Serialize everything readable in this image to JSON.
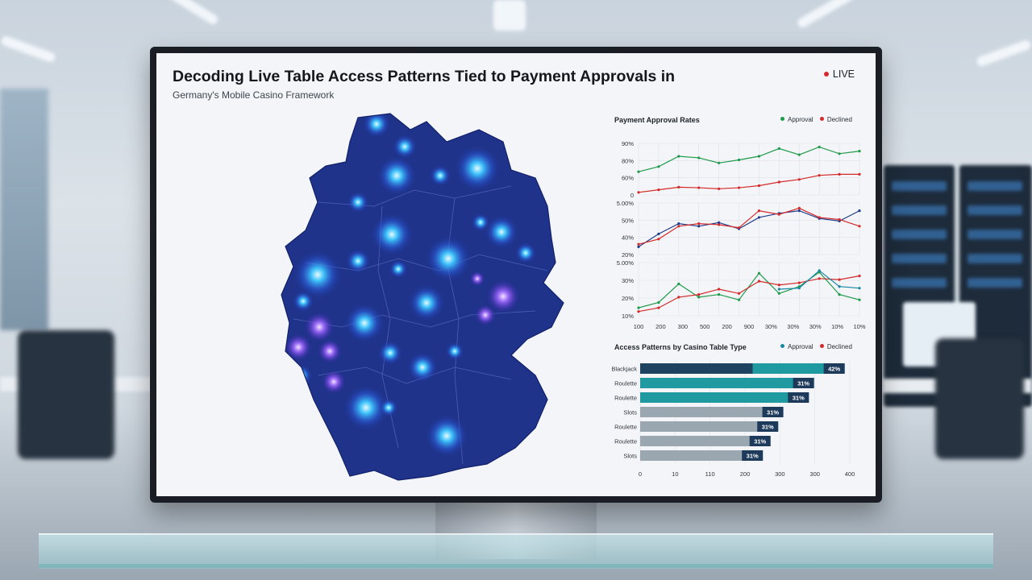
{
  "header": {
    "title": "Decoding Live Table Access Patterns Tied to Payment Approvals in",
    "subtitle": "Germany's Mobile Casino Framework",
    "live_label": "LIVE"
  },
  "colors": {
    "approved_line": "#1f9a4b",
    "declined_line": "#d42a2a",
    "approved_bar_legend": "#1a86a6",
    "accent_blue": "#1f3d8a",
    "teal": "#1f9aa0",
    "gray_bar": "#9aa7b1"
  },
  "map": {
    "icon": "germany-heatmap-icon"
  },
  "line_panel": {
    "title": "Payment Approval Rates",
    "legend": [
      {
        "label": "Approval",
        "color": "#1f9a4b"
      },
      {
        "label": "Declined",
        "color": "#d42a2a"
      }
    ]
  },
  "chart_data": [
    {
      "type": "line",
      "title": "Payment Approval Rates",
      "yticks": [
        "90%",
        "80%",
        "60%",
        "0"
      ],
      "ylim": [
        0,
        100
      ],
      "x": [
        0,
        1,
        2,
        3,
        4,
        5,
        6,
        7,
        8,
        9,
        10,
        11
      ],
      "series": [
        {
          "name": "Approval",
          "color": "#1f9a4b",
          "values": [
            45,
            55,
            75,
            72,
            62,
            68,
            75,
            90,
            78,
            93,
            80,
            85
          ]
        },
        {
          "name": "Declined",
          "color": "#d42a2a",
          "values": [
            5,
            10,
            15,
            14,
            12,
            14,
            18,
            25,
            30,
            38,
            40,
            40
          ]
        }
      ]
    },
    {
      "type": "line",
      "yticks": [
        "5.00%",
        "50%",
        "40%",
        "20%"
      ],
      "ylim": [
        0,
        100
      ],
      "x": [
        0,
        1,
        2,
        3,
        4,
        5,
        6,
        7,
        8,
        9,
        10,
        11
      ],
      "series": [
        {
          "name": "Approval",
          "color": "#1f3d8a",
          "values": [
            15,
            40,
            60,
            55,
            62,
            50,
            72,
            80,
            85,
            70,
            65,
            85
          ]
        },
        {
          "name": "Declined",
          "color": "#d42a2a",
          "values": [
            20,
            30,
            55,
            60,
            58,
            52,
            85,
            78,
            90,
            72,
            68,
            55
          ]
        }
      ]
    },
    {
      "type": "line",
      "yticks": [
        "5.00%",
        "30%",
        "20%",
        "10%"
      ],
      "ylim": [
        0,
        100
      ],
      "xticks": [
        "100",
        "200",
        "300",
        "500",
        "200",
        "900",
        "30%",
        "30%",
        "30%",
        "10%",
        "10%"
      ],
      "series": [
        {
          "name": "Approval",
          "color": "#1f9a4b",
          "values": [
            15,
            25,
            60,
            35,
            40,
            30,
            80,
            42,
            55,
            82,
            40,
            30
          ]
        },
        {
          "name": "Declined",
          "color": "#d42a2a",
          "values": [
            8,
            15,
            35,
            40,
            50,
            42,
            65,
            58,
            62,
            70,
            68,
            75
          ]
        },
        {
          "name": "",
          "color": "#1a86a6",
          "values": [
            null,
            null,
            null,
            null,
            null,
            null,
            null,
            50,
            52,
            85,
            55,
            52
          ]
        }
      ]
    },
    {
      "type": "bar",
      "title": "Access Patterns by Casino Table Type",
      "legend": [
        {
          "label": "Approval",
          "color": "#1a86a6"
        },
        {
          "label": "Declined",
          "color": "#d42a2a"
        }
      ],
      "categories": [
        "Blackjack",
        "Roulette",
        "Roulette",
        "Slots",
        "Roulette",
        "Roulette",
        "Slots"
      ],
      "values": [
        400,
        340,
        330,
        280,
        270,
        255,
        240
      ],
      "labels": [
        "42%",
        "31%",
        "31%",
        "31%",
        "31%",
        "31%",
        "31%"
      ],
      "colors": [
        "#1f9aa0",
        "#1f9aa0",
        "#1f9aa0",
        "#9aa7b1",
        "#9aa7b1",
        "#9aa7b1",
        "#9aa7b1"
      ],
      "xticks": [
        "0",
        "10",
        "110",
        "200",
        "300",
        "300",
        "400"
      ],
      "xlim": [
        0,
        410
      ]
    }
  ]
}
